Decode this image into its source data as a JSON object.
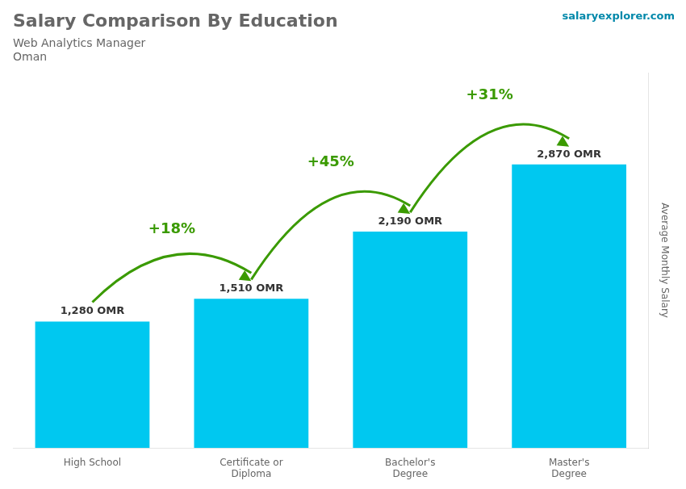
{
  "chart_data": {
    "type": "bar",
    "title": "Salary Comparison By Education",
    "subtitle": "Web Analytics Manager",
    "ylabel": "Average Monthly Salary",
    "categories": [
      "High School",
      "Certificate or\nDiploma",
      "Bachelor's\nDegree",
      "Master's\nDegree"
    ],
    "values": [
      1280,
      1510,
      2190,
      2870
    ],
    "value_labels": [
      "1,280 OMR",
      "1,510 OMR",
      "2,190 OMR",
      "2,870 OMR"
    ],
    "data_labels": true,
    "color": "#00c8f0",
    "ylim": [
      0,
      3800
    ],
    "tick_labels": "x",
    "grid": false,
    "annotations": {
      "country": "Oman",
      "source": "salaryexplorer.com",
      "changes": [
        "+18%",
        "+45%",
        "+31%"
      ]
    }
  }
}
